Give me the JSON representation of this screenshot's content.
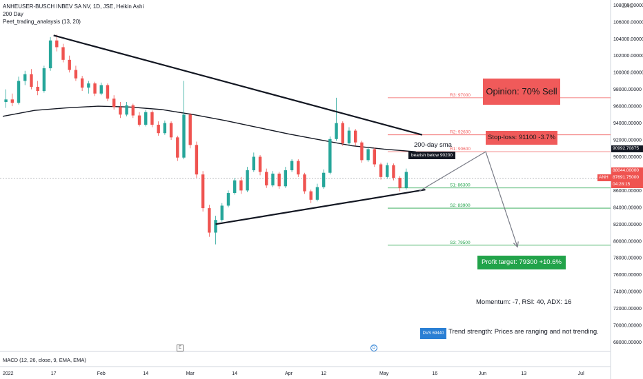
{
  "legend": {
    "symbol": "ANHEUSER-BUSCH INBEV SA NV, 1D, JSE, Heikin Ashi",
    "sma": "200 Day",
    "indicator": "Peet_trading_analaysis (13, 20)"
  },
  "macd_label": "MACD (12, 26, close, 9, EMA, EMA)",
  "top_icon": "ZAC",
  "annotations": {
    "opinion": "Opinion: 70% Sell",
    "stop_loss": "Stop-loss: 91100 -3.7%",
    "profit_target": "Profit target: 79300 +10.6%",
    "momentum": "Momentum: -7, RSI: 40, ADX: 16",
    "trend_strength": "Trend strength: Prices are ranging and not trending.",
    "dvs": "DVS 69440",
    "sma_label": "200-day sma",
    "bearish_tip": "bearish below 90200",
    "event_e": "E",
    "event_d": "D"
  },
  "price_tags": {
    "current": "90992.70875",
    "level_a": "88044.00000",
    "level_b": "87691.75000",
    "countdown": "04:28:15",
    "symbol": "ANH"
  },
  "colors": {
    "up": "#26a69a",
    "down": "#ef5350",
    "resistance": "#f05a5a",
    "support": "#22a34a",
    "trendline": "#131722"
  },
  "chart_data": {
    "type": "candlestick",
    "chart_style": "Heikin Ashi",
    "y_axis": {
      "ylim": [
        66900,
        108600
      ],
      "tick_labels": [
        "108000.00000",
        "106000.00000",
        "104000.00000",
        "102000.00000",
        "100000.00000",
        "98000.00000",
        "96000.00000",
        "94000.00000",
        "92000.00000",
        "90000.00000",
        "88000.00000",
        "86000.00000",
        "84000.00000",
        "82000.00000",
        "80000.00000",
        "78000.00000",
        "76000.00000",
        "74000.00000",
        "72000.00000",
        "70000.00000",
        "68000.00000"
      ],
      "tick_values": [
        108000,
        106000,
        104000,
        102000,
        100000,
        98000,
        96000,
        94000,
        92000,
        90000,
        88000,
        86000,
        84000,
        82000,
        80000,
        78000,
        76000,
        74000,
        72000,
        70000,
        68000
      ]
    },
    "x_axis": {
      "tick_labels": [
        "2022",
        "17",
        "Feb",
        "14",
        "Mar",
        "14",
        "Apr",
        "12",
        "May",
        "16",
        "Jun",
        "13",
        "Jul"
      ],
      "tick_days": [
        0,
        16,
        31,
        45,
        59,
        73,
        90,
        101,
        120,
        136,
        151,
        164,
        182
      ],
      "xlim_days": [
        0,
        190
      ]
    },
    "levels": [
      {
        "label": "R3: 97000",
        "value": 97000,
        "kind": "resistance"
      },
      {
        "label": "R2: 92600",
        "value": 92600,
        "kind": "resistance"
      },
      {
        "label": "R1: 90600",
        "value": 90600,
        "kind": "resistance"
      },
      {
        "label": "S1: 86300",
        "value": 86300,
        "kind": "support"
      },
      {
        "label": "S2: 83900",
        "value": 83900,
        "kind": "support"
      },
      {
        "label": "S3: 79500",
        "value": 79500,
        "kind": "support"
      }
    ],
    "trendlines": [
      {
        "name": "upper",
        "from": {
          "day": 16,
          "price": 104400
        },
        "to": {
          "day": 132,
          "price": 92600
        }
      },
      {
        "name": "lower",
        "from": {
          "day": 67,
          "price": 82000
        },
        "to": {
          "day": 133,
          "price": 86100
        }
      }
    ],
    "projection": [
      {
        "day": 131,
        "price": 85900
      },
      {
        "day": 152,
        "price": 90600
      },
      {
        "day": 162,
        "price": 79300
      }
    ],
    "sma_200": {
      "days": [
        0,
        10,
        20,
        30,
        40,
        50,
        60,
        70,
        80,
        90,
        100,
        110,
        120,
        130
      ],
      "values": [
        94800,
        95500,
        95800,
        96000,
        95900,
        95600,
        95000,
        94300,
        93500,
        92700,
        92000,
        91300,
        90900,
        90600
      ]
    },
    "candles": [
      [
        1,
        96500,
        98000,
        95800,
        96800
      ],
      [
        3,
        96800,
        97500,
        96000,
        96400
      ],
      [
        5,
        96400,
        99500,
        96200,
        99000
      ],
      [
        7,
        99000,
        100200,
        98500,
        99800
      ],
      [
        9,
        99800,
        100400,
        98000,
        98300
      ],
      [
        11,
        98300,
        99000,
        97300,
        97800
      ],
      [
        13,
        97800,
        100800,
        97600,
        100500
      ],
      [
        15,
        100500,
        104200,
        100200,
        103800
      ],
      [
        17,
        103800,
        104500,
        102500,
        103000
      ],
      [
        19,
        103000,
        103400,
        101200,
        101500
      ],
      [
        21,
        101500,
        102000,
        100000,
        100300
      ],
      [
        23,
        100300,
        100800,
        99000,
        99300
      ],
      [
        25,
        99300,
        99600,
        97800,
        98200
      ],
      [
        27,
        98200,
        99000,
        97500,
        98700
      ],
      [
        29,
        98700,
        98900,
        97200,
        97500
      ],
      [
        31,
        97500,
        98800,
        97300,
        98500
      ],
      [
        33,
        98500,
        98700,
        96600,
        96900
      ],
      [
        35,
        96900,
        97300,
        95600,
        95900
      ],
      [
        37,
        95900,
        96500,
        94600,
        95000
      ],
      [
        39,
        95000,
        96500,
        94800,
        96100
      ],
      [
        41,
        96100,
        96300,
        94600,
        94900
      ],
      [
        43,
        94900,
        95300,
        93600,
        93800
      ],
      [
        45,
        93800,
        95600,
        93600,
        95300
      ],
      [
        47,
        95300,
        95500,
        93500,
        93800
      ],
      [
        49,
        93800,
        94200,
        92500,
        92800
      ],
      [
        51,
        92800,
        94300,
        92600,
        94000
      ],
      [
        53,
        94000,
        94200,
        92000,
        92300
      ],
      [
        55,
        92300,
        92500,
        89500,
        89900
      ],
      [
        57,
        89900,
        99000,
        89700,
        95000
      ],
      [
        59,
        95000,
        95200,
        91000,
        91400
      ],
      [
        61,
        91400,
        91800,
        87500,
        87900
      ],
      [
        63,
        87900,
        88300,
        83500,
        83900
      ],
      [
        65,
        83900,
        84300,
        80500,
        81000
      ],
      [
        67,
        81000,
        83000,
        79600,
        82500
      ],
      [
        69,
        82500,
        84500,
        82300,
        84200
      ],
      [
        71,
        84200,
        86000,
        84000,
        85700
      ],
      [
        73,
        85700,
        87500,
        85500,
        87200
      ],
      [
        75,
        87200,
        87600,
        85600,
        86000
      ],
      [
        77,
        86000,
        88800,
        85800,
        88400
      ],
      [
        79,
        88400,
        90500,
        88200,
        90000
      ],
      [
        81,
        90000,
        90200,
        87800,
        88200
      ],
      [
        83,
        88200,
        88600,
        86300,
        86600
      ],
      [
        85,
        86600,
        88300,
        86400,
        88000
      ],
      [
        87,
        88000,
        88200,
        86200,
        86500
      ],
      [
        89,
        86500,
        88800,
        86300,
        88400
      ],
      [
        91,
        88400,
        89700,
        88200,
        89500
      ],
      [
        93,
        89500,
        89700,
        87600,
        87900
      ],
      [
        95,
        87900,
        88100,
        85600,
        85900
      ],
      [
        97,
        85900,
        86100,
        84500,
        84900
      ],
      [
        99,
        84900,
        86800,
        84700,
        86400
      ],
      [
        101,
        86400,
        88500,
        86200,
        88100
      ],
      [
        103,
        88100,
        92400,
        87900,
        92100
      ],
      [
        105,
        92100,
        97000,
        91900,
        94000
      ],
      [
        107,
        94000,
        94200,
        91300,
        91600
      ],
      [
        109,
        91600,
        93500,
        91400,
        93100
      ],
      [
        111,
        93100,
        93300,
        91300,
        91700
      ],
      [
        113,
        91700,
        91900,
        89300,
        89600
      ],
      [
        115,
        89600,
        91200,
        89400,
        90900
      ],
      [
        117,
        90900,
        91100,
        88800,
        89100
      ],
      [
        119,
        89100,
        89300,
        87300,
        87600
      ],
      [
        121,
        87600,
        89300,
        87400,
        89000
      ],
      [
        123,
        89000,
        89200,
        87200,
        87500
      ],
      [
        125,
        87500,
        87700,
        85900,
        86300
      ],
      [
        127,
        86300,
        88600,
        86100,
        88200
      ]
    ]
  }
}
